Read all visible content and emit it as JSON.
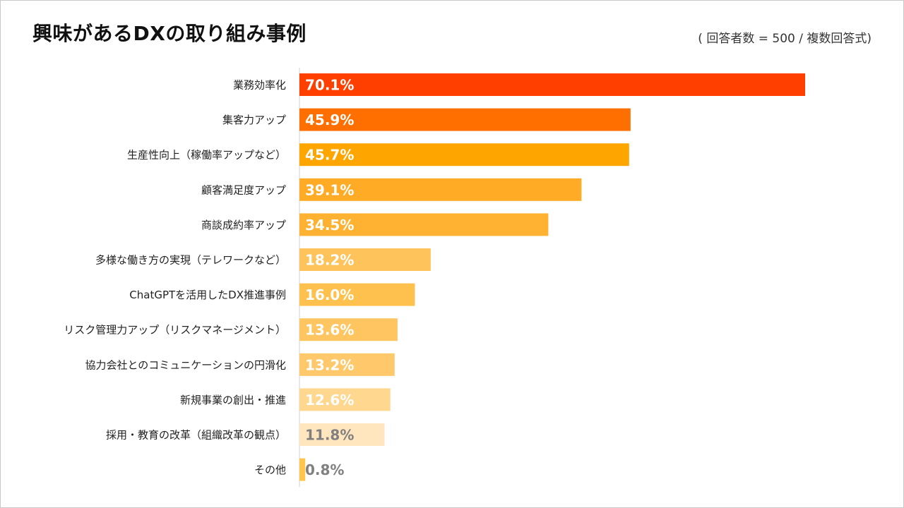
{
  "header": {
    "title": "興味があるDXの取り組み事例",
    "note": "( 回答者数 = 500 / 複数回答式)"
  },
  "chart_data": {
    "type": "bar",
    "orientation": "horizontal",
    "title": "興味があるDXの取り組み事例",
    "categories": [
      "業務効率化",
      "集客力アップ",
      "生産性向上（稼働率アップなど）",
      "顧客満足度アップ",
      "商談成約率アップ",
      "多様な働き方の実現（テレワークなど）",
      "ChatGPTを活用したDX推進事例",
      "リスク管理力アップ（リスクマネージメント）",
      "協力会社とのコミュニケーションの円滑化",
      "新規事業の創出・推進",
      "採用・教育の改革（組織改革の観点）",
      "その他"
    ],
    "values": [
      70.1,
      45.9,
      45.7,
      39.1,
      34.5,
      18.2,
      16.0,
      13.6,
      13.2,
      12.6,
      11.8,
      0.8
    ],
    "value_labels": [
      "70.1%",
      "45.9%",
      "45.7%",
      "39.1%",
      "34.5%",
      "18.2%",
      "16.0%",
      "13.6%",
      "13.2%",
      "12.6%",
      "11.8%",
      "0.8%"
    ],
    "bar_colors": [
      "#ff3f00",
      "#ff6f00",
      "#ffa500",
      "#ffab26",
      "#ffb231",
      "#ffc35c",
      "#ffc14d",
      "#ffc560",
      "#ffc96b",
      "#ffd78f",
      "#ffe6bf",
      "#ffc54d"
    ],
    "label_colors": [
      "#ffffff",
      "#ffffff",
      "#ffffff",
      "#ffffff",
      "#ffffff",
      "#ffffff",
      "#ffffff",
      "#ffffff",
      "#ffffff",
      "#ffffff",
      "#808080",
      "#808080"
    ],
    "xlim": [
      0,
      70.1
    ],
    "grid": false,
    "legend": "none"
  }
}
